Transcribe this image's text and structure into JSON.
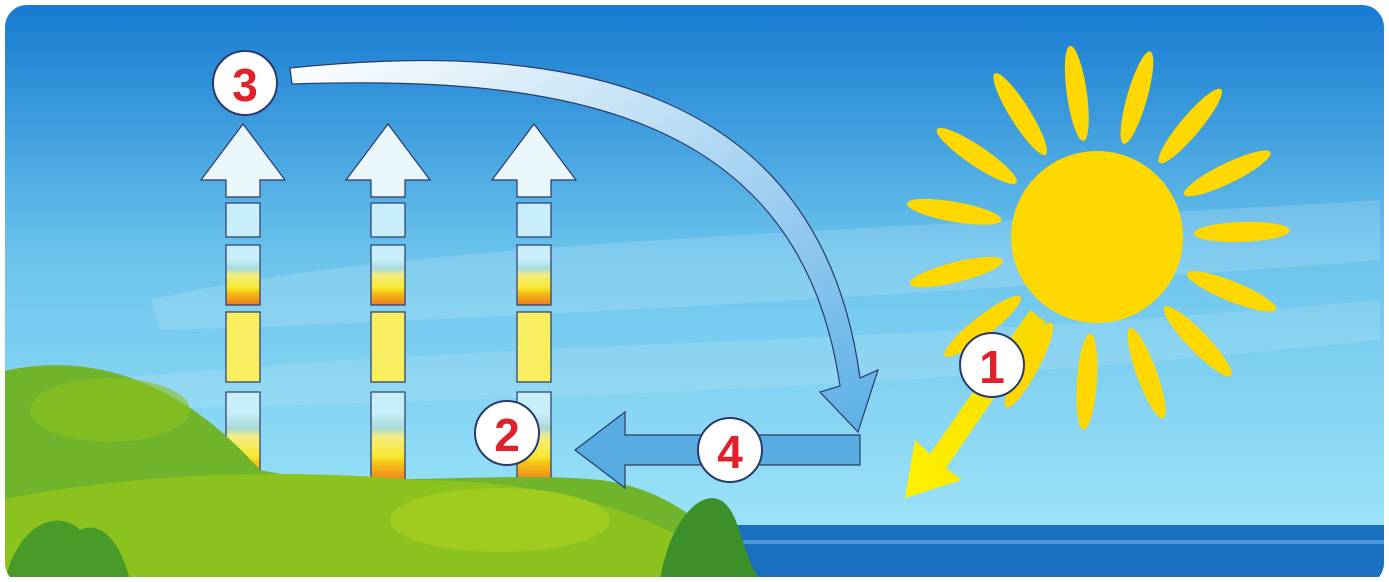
{
  "steps": [
    "1",
    "2",
    "3",
    "4"
  ]
}
